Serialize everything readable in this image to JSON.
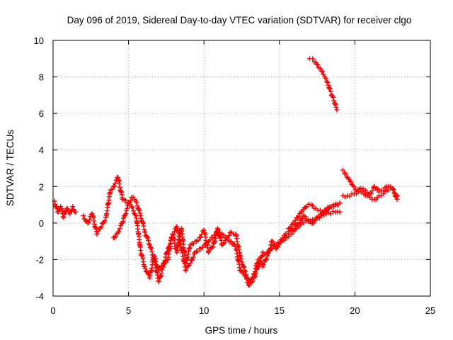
{
  "chart_data": {
    "type": "scatter",
    "title": "Day 096 of 2019, Sidereal Day-to-day VTEC variation (SDTVAR) for receiver clgo",
    "xlabel": "GPS time / hours",
    "ylabel": "SDTVAR / TECUs",
    "xlim": [
      0,
      25
    ],
    "ylim": [
      -4,
      10
    ],
    "xticks": [
      0,
      5,
      10,
      15,
      20,
      25
    ],
    "yticks": [
      -4,
      -2,
      0,
      2,
      4,
      6,
      8,
      10
    ],
    "grid": true,
    "marker": "+",
    "series": [
      {
        "name": "SDTVAR",
        "color": "#ff0000",
        "segments": [
          {
            "x": [
              0.1,
              0.3,
              0.5,
              0.7,
              0.9,
              1.1,
              1.3,
              1.5
            ],
            "y": [
              1.2,
              0.6,
              0.9,
              0.3,
              0.8,
              0.5,
              0.9,
              0.6
            ]
          },
          {
            "x": [
              2.0,
              2.3,
              2.6,
              2.9,
              3.2,
              3.5,
              3.8,
              4.0,
              4.3,
              4.6,
              4.9,
              5.2,
              5.5,
              5.8,
              6.1,
              6.4,
              6.7,
              7.0,
              7.3,
              7.6,
              7.9,
              8.2,
              8.5,
              8.8,
              9.1,
              9.4,
              9.7,
              10.0,
              10.3,
              10.6,
              10.9,
              11.2,
              11.5,
              11.8,
              12.1,
              12.4,
              12.7,
              13.0,
              13.3,
              13.6,
              13.9,
              14.2,
              14.5,
              14.8,
              15.1,
              15.4,
              15.7,
              16.0,
              16.3,
              16.6,
              16.9,
              17.2,
              17.5,
              17.8,
              18.1,
              18.4,
              18.7,
              19.0
            ],
            "y": [
              0.4,
              0.0,
              0.5,
              -0.6,
              -0.2,
              0.3,
              1.8,
              2.0,
              2.5,
              1.3,
              1.1,
              0.9,
              0.4,
              -1.5,
              -2.5,
              -3.0,
              -1.8,
              -2.6,
              -2.2,
              -2.0,
              -0.6,
              -1.6,
              -0.3,
              -2.2,
              -1.2,
              -1.0,
              -0.8,
              -0.4,
              -1.6,
              -1.3,
              -0.3,
              -1.2,
              -0.8,
              -0.5,
              -0.6,
              -1.8,
              -2.6,
              -3.2,
              -2.8,
              -2.0,
              -2.4,
              -1.8,
              -1.0,
              -1.4,
              -0.9,
              -0.6,
              -0.4,
              -0.3,
              0.0,
              0.4,
              0.2,
              0.0,
              0.3,
              0.5,
              0.7,
              0.9,
              1.0,
              1.1
            ]
          },
          {
            "x": [
              4.0,
              4.3,
              4.6,
              4.9,
              5.2,
              5.5,
              5.8,
              6.1,
              6.4,
              6.7,
              7.0,
              7.3,
              7.6,
              7.9,
              8.2,
              8.5,
              8.8,
              9.1,
              9.4,
              9.7,
              10.0,
              10.3,
              10.6,
              10.9,
              11.2,
              11.5,
              11.8,
              12.1,
              12.4,
              12.7,
              13.0,
              13.3,
              13.6,
              13.9,
              14.2,
              14.5,
              14.8,
              15.1,
              15.4,
              15.7,
              16.0,
              16.3,
              16.6,
              16.9,
              17.2,
              17.5,
              17.8,
              18.1,
              18.4,
              18.7,
              19.0
            ],
            "y": [
              -0.8,
              -0.5,
              0.0,
              0.8,
              1.4,
              1.2,
              0.4,
              -0.5,
              -1.2,
              -2.0,
              -3.2,
              -2.4,
              -1.4,
              -0.8,
              -0.2,
              -1.4,
              -2.6,
              -2.2,
              -1.6,
              -1.4,
              -1.2,
              -1.0,
              -0.8,
              -0.6,
              -0.6,
              -0.8,
              -1.0,
              -1.3,
              -2.6,
              -2.9,
              -3.4,
              -3.0,
              -2.4,
              -1.6,
              -1.8,
              -1.4,
              -1.2,
              -1.0,
              -0.8,
              -0.6,
              -0.4,
              -0.2,
              0.0,
              0.1,
              0.2,
              0.3,
              0.4,
              0.5,
              0.5,
              0.6,
              0.6
            ]
          },
          {
            "x": [
              15.6,
              15.9,
              16.2,
              16.5,
              16.8,
              17.1,
              17.4,
              17.7,
              18.0,
              18.3,
              18.6,
              18.9
            ],
            "y": [
              -0.3,
              0.0,
              0.3,
              0.6,
              0.9,
              1.0,
              0.8,
              0.7,
              0.6,
              0.8,
              0.9,
              1.0
            ]
          },
          {
            "x": [
              17.0,
              17.2,
              17.4,
              17.6,
              17.8,
              18.0,
              18.2,
              18.4,
              18.6,
              18.8
            ],
            "y": [
              9.0,
              9.0,
              8.8,
              8.5,
              8.3,
              8.0,
              7.7,
              7.2,
              6.7,
              6.2
            ]
          },
          {
            "x": [
              19.2,
              19.4,
              19.6,
              19.8,
              20.1,
              20.4,
              20.7,
              21.0,
              21.3,
              21.6,
              21.9,
              22.2,
              22.5,
              22.8
            ],
            "y": [
              2.9,
              2.7,
              2.4,
              2.1,
              1.7,
              1.9,
              1.8,
              1.6,
              2.0,
              1.7,
              1.8,
              2.0,
              1.9,
              1.5
            ]
          },
          {
            "x": [
              19.2,
              19.5,
              19.8,
              20.1,
              20.4,
              20.7,
              21.0,
              21.3,
              21.6,
              21.9,
              22.2,
              22.5,
              22.8
            ],
            "y": [
              1.5,
              1.5,
              1.6,
              1.6,
              1.7,
              1.5,
              1.4,
              1.3,
              1.5,
              1.6,
              1.8,
              1.9,
              1.3
            ]
          }
        ]
      }
    ]
  }
}
